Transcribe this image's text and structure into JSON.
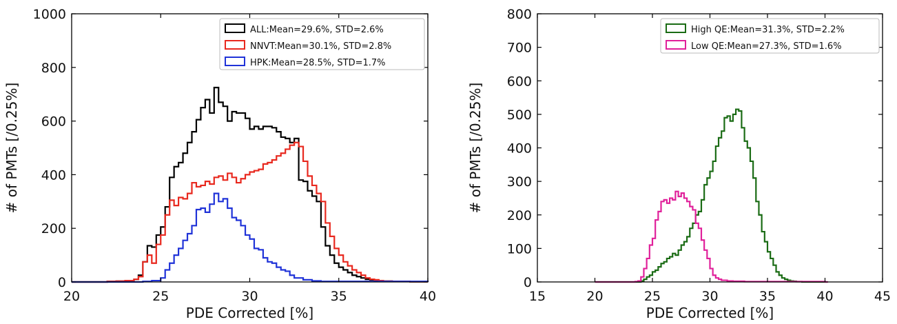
{
  "chart_data": [
    {
      "type": "histogram",
      "xlabel": "PDE Corrected [%]",
      "ylabel": "# of PMTs [/0.25%]",
      "xlim": [
        20,
        40
      ],
      "ylim": [
        0,
        1000
      ],
      "xticks": [
        20,
        25,
        30,
        35,
        40
      ],
      "yticks": [
        0,
        200,
        400,
        600,
        800,
        1000
      ],
      "bin_width": 0.25,
      "legend_position": "top-right",
      "series": [
        {
          "name": "ALL:Mean=29.6%, STD=2.6%",
          "color": "#000000",
          "x": [
            20,
            21,
            22,
            22.5,
            23,
            23.5,
            23.75,
            24,
            24.25,
            24.5,
            24.75,
            25,
            25.25,
            25.5,
            25.75,
            26,
            26.25,
            26.5,
            26.75,
            27,
            27.25,
            27.5,
            27.75,
            28,
            28.25,
            28.5,
            28.75,
            29,
            29.25,
            29.5,
            29.75,
            30,
            30.25,
            30.5,
            30.75,
            31,
            31.25,
            31.5,
            31.75,
            32,
            32.25,
            32.5,
            32.75,
            33,
            33.25,
            33.5,
            33.75,
            34,
            34.25,
            34.5,
            34.75,
            35,
            35.25,
            35.5,
            35.75,
            36,
            36.25,
            36.5,
            36.75,
            37,
            37.25,
            37.5,
            38,
            39,
            40
          ],
          "y": [
            0,
            0,
            2,
            3,
            5,
            10,
            25,
            75,
            135,
            130,
            175,
            205,
            280,
            390,
            430,
            445,
            480,
            520,
            560,
            605,
            650,
            680,
            630,
            725,
            670,
            655,
            600,
            635,
            630,
            630,
            610,
            570,
            580,
            570,
            580,
            580,
            575,
            560,
            540,
            535,
            520,
            535,
            380,
            375,
            340,
            320,
            300,
            205,
            135,
            100,
            70,
            55,
            45,
            35,
            25,
            20,
            15,
            10,
            8,
            6,
            5,
            3,
            2,
            1,
            0
          ]
        },
        {
          "name": "NNVT:Mean=30.1%, STD=2.8%",
          "color": "#e8281e",
          "x": [
            20,
            21,
            22,
            22.5,
            23,
            23.5,
            23.75,
            24,
            24.25,
            24.5,
            24.75,
            25,
            25.25,
            25.5,
            25.75,
            26,
            26.25,
            26.5,
            26.75,
            27,
            27.25,
            27.5,
            27.75,
            28,
            28.25,
            28.5,
            28.75,
            29,
            29.25,
            29.5,
            29.75,
            30,
            30.25,
            30.5,
            30.75,
            31,
            31.25,
            31.5,
            31.75,
            32,
            32.25,
            32.5,
            32.75,
            33,
            33.25,
            33.5,
            33.75,
            34,
            34.25,
            34.5,
            34.75,
            35,
            35.25,
            35.5,
            35.75,
            36,
            36.25,
            36.5,
            36.75,
            37,
            37.25,
            37.5,
            38,
            39,
            40
          ],
          "y": [
            0,
            0,
            2,
            3,
            5,
            10,
            20,
            75,
            100,
            70,
            140,
            175,
            250,
            305,
            285,
            315,
            310,
            330,
            370,
            355,
            360,
            375,
            365,
            390,
            395,
            380,
            405,
            390,
            370,
            385,
            400,
            410,
            415,
            420,
            440,
            445,
            455,
            470,
            480,
            495,
            510,
            520,
            505,
            450,
            395,
            360,
            330,
            300,
            220,
            170,
            125,
            100,
            75,
            60,
            45,
            35,
            25,
            15,
            10,
            8,
            5,
            3,
            2,
            1,
            0
          ]
        },
        {
          "name": "HPK:Mean=28.5%, STD=1.7%",
          "color": "#1f32d8",
          "x": [
            20,
            23.5,
            24,
            24.5,
            25,
            25.25,
            25.5,
            25.75,
            26,
            26.25,
            26.5,
            26.75,
            27,
            27.25,
            27.5,
            27.75,
            28,
            28.25,
            28.5,
            28.75,
            29,
            29.25,
            29.5,
            29.75,
            30,
            30.25,
            30.5,
            30.75,
            31,
            31.25,
            31.5,
            31.75,
            32,
            32.25,
            32.5,
            33,
            33.5,
            34,
            40
          ],
          "y": [
            0,
            0,
            2,
            5,
            15,
            45,
            70,
            100,
            125,
            155,
            180,
            210,
            270,
            275,
            260,
            290,
            330,
            300,
            310,
            275,
            240,
            230,
            210,
            175,
            160,
            125,
            120,
            90,
            75,
            70,
            55,
            45,
            40,
            25,
            15,
            8,
            4,
            2,
            0
          ]
        }
      ]
    },
    {
      "type": "histogram",
      "xlabel": "PDE Corrected [%]",
      "ylabel": "# of PMTs [/0.25%]",
      "xlim": [
        15,
        45
      ],
      "ylim": [
        0,
        800
      ],
      "xticks": [
        15,
        20,
        25,
        30,
        35,
        40,
        45
      ],
      "yticks": [
        0,
        100,
        200,
        300,
        400,
        500,
        600,
        700,
        800
      ],
      "bin_width": 0.25,
      "legend_position": "top-right",
      "series": [
        {
          "name": "High QE:Mean=31.3%, STD=2.2%",
          "color": "#1a6b14",
          "x": [
            20,
            23.5,
            24,
            24.25,
            24.5,
            24.75,
            25,
            25.25,
            25.5,
            25.75,
            26,
            26.25,
            26.5,
            26.75,
            27,
            27.25,
            27.5,
            27.75,
            28,
            28.25,
            28.5,
            28.75,
            29,
            29.25,
            29.5,
            29.75,
            30,
            30.25,
            30.5,
            30.75,
            31,
            31.25,
            31.5,
            31.75,
            32,
            32.25,
            32.5,
            32.75,
            33,
            33.25,
            33.5,
            33.75,
            34,
            34.25,
            34.5,
            34.75,
            35,
            35.25,
            35.5,
            35.75,
            36,
            36.25,
            36.5,
            36.75,
            37,
            37.25,
            37.5,
            38,
            40
          ],
          "y": [
            0,
            0,
            3,
            8,
            15,
            20,
            30,
            35,
            45,
            55,
            60,
            70,
            75,
            85,
            80,
            95,
            110,
            120,
            135,
            160,
            175,
            200,
            210,
            245,
            290,
            310,
            330,
            360,
            405,
            430,
            450,
            490,
            495,
            480,
            500,
            515,
            510,
            460,
            420,
            400,
            360,
            310,
            240,
            200,
            150,
            120,
            90,
            70,
            50,
            30,
            20,
            12,
            8,
            5,
            3,
            2,
            1,
            0,
            0
          ]
        },
        {
          "name": "Low QE:Mean=27.3%, STD=1.6%",
          "color": "#e0209a",
          "x": [
            20,
            23.5,
            23.75,
            24,
            24.25,
            24.5,
            24.75,
            25,
            25.25,
            25.5,
            25.75,
            26,
            26.25,
            26.5,
            26.75,
            27,
            27.25,
            27.5,
            27.75,
            28,
            28.25,
            28.5,
            28.75,
            29,
            29.25,
            29.5,
            29.75,
            30,
            30.25,
            30.5,
            30.75,
            31,
            31.5,
            32,
            33,
            40
          ],
          "y": [
            0,
            1,
            3,
            15,
            40,
            70,
            110,
            130,
            185,
            210,
            240,
            245,
            235,
            250,
            245,
            270,
            255,
            265,
            250,
            240,
            225,
            215,
            175,
            160,
            125,
            95,
            70,
            40,
            20,
            12,
            8,
            5,
            3,
            2,
            1,
            0
          ]
        }
      ]
    }
  ]
}
